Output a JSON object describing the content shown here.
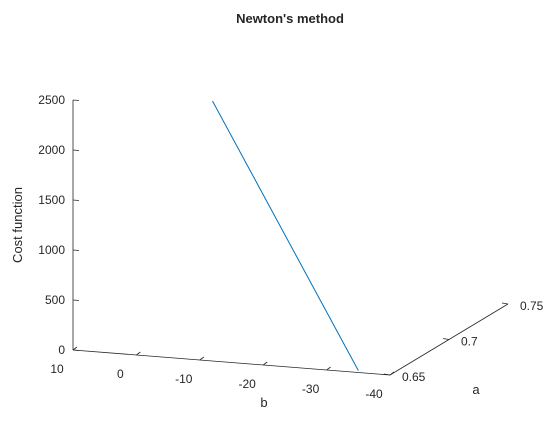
{
  "chart_data": {
    "type": "line3d",
    "title": "Newton's method",
    "xlabel": "b",
    "ylabel": "a",
    "zlabel": "Cost function",
    "b_ticks": [
      "10",
      "0",
      "-10",
      "-20",
      "-30",
      "-40"
    ],
    "a_ticks": [
      "0.65",
      "0.7",
      "0.75"
    ],
    "z_ticks": [
      "0",
      "500",
      "1000",
      "1500",
      "2000",
      "2500"
    ],
    "b_range": [
      10,
      -40
    ],
    "a_range": [
      0.65,
      0.75
    ],
    "z_range": [
      0,
      2500
    ],
    "grid": false,
    "series": [
      {
        "color": "#0072BD",
        "points": [
          {
            "b": -12,
            "a": 0.65,
            "cost": 2600
          },
          {
            "b": -35,
            "a": 0.65,
            "cost": 20
          }
        ]
      }
    ]
  }
}
